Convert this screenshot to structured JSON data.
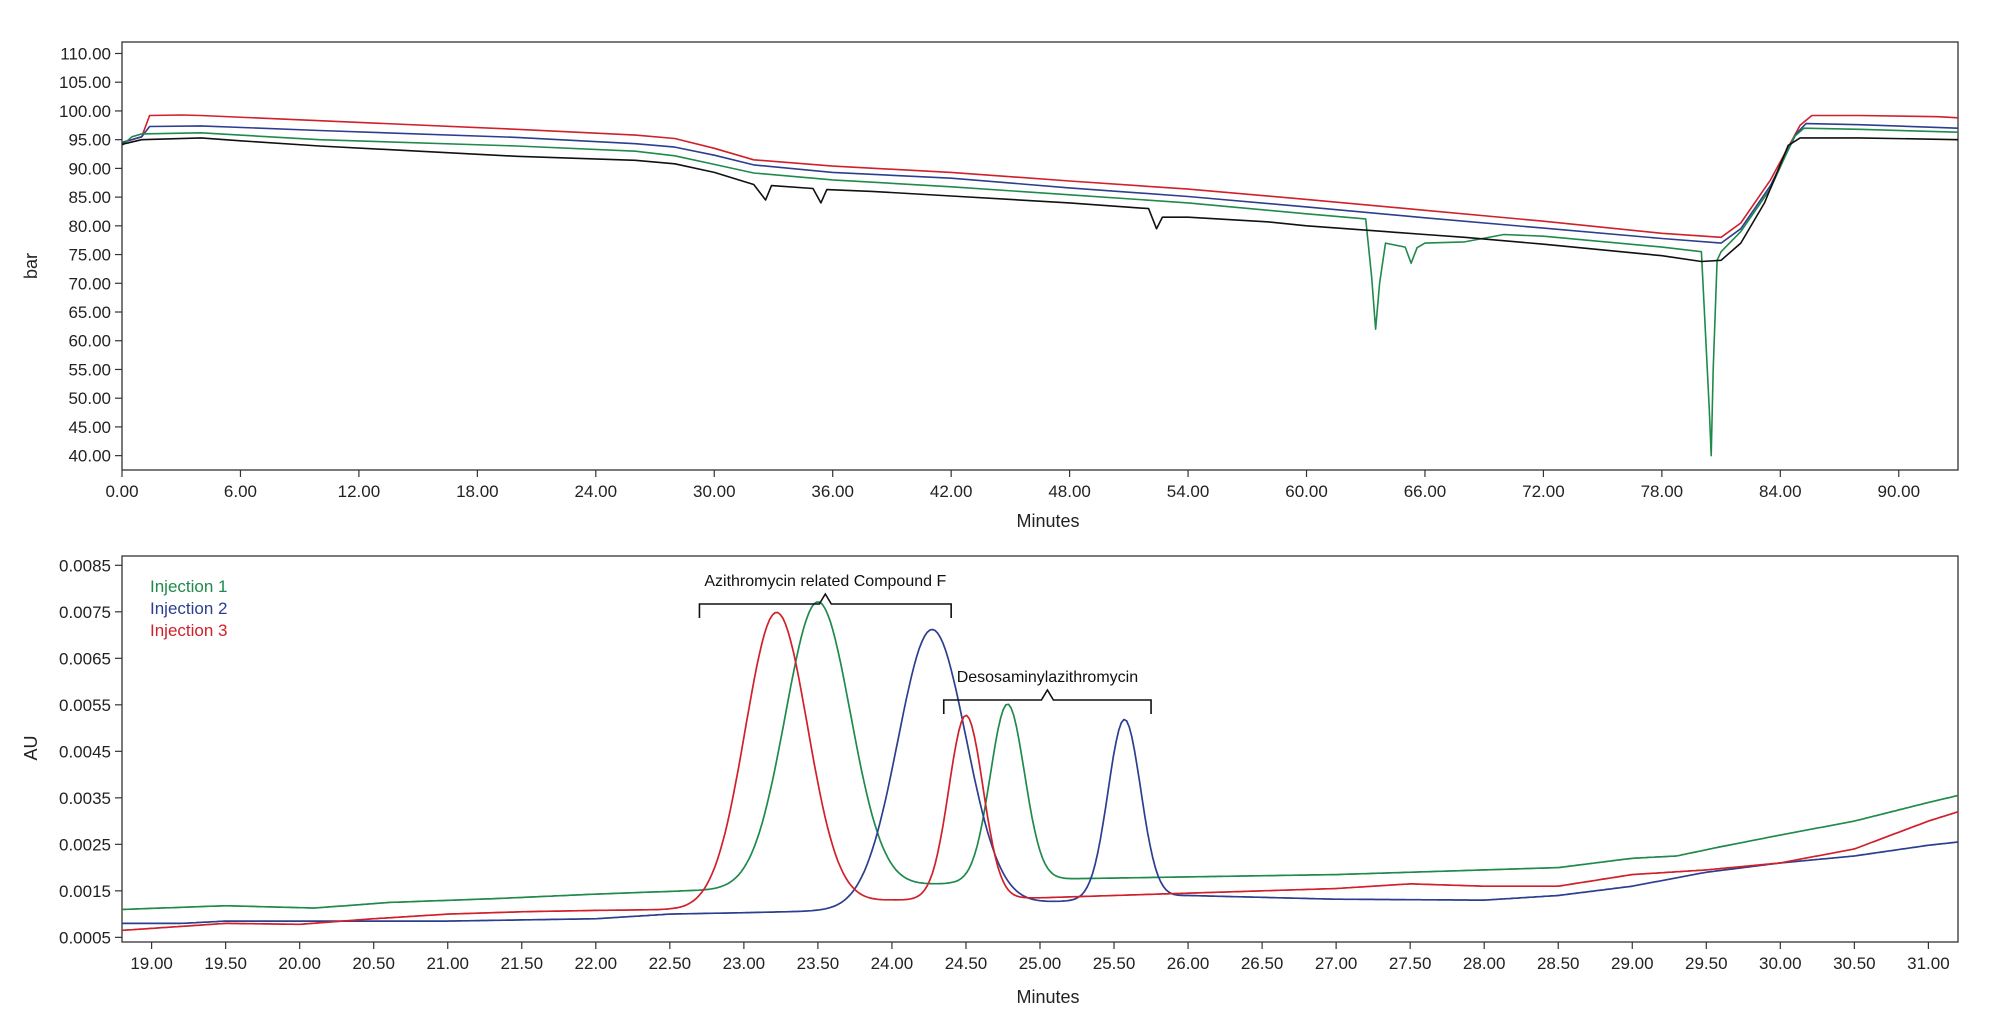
{
  "chart_data": [
    {
      "type": "line",
      "title": "",
      "xlabel": "Minutes",
      "ylabel": "bar",
      "xlim": [
        0,
        93
      ],
      "ylim": [
        37.5,
        112
      ],
      "grid": false,
      "xticks": [
        "0.00",
        "6.00",
        "12.00",
        "18.00",
        "24.00",
        "30.00",
        "36.00",
        "42.00",
        "48.00",
        "54.00",
        "60.00",
        "66.00",
        "72.00",
        "78.00",
        "84.00",
        "90.00"
      ],
      "yticks": [
        "40.00",
        "45.00",
        "50.00",
        "55.00",
        "60.00",
        "65.00",
        "70.00",
        "75.00",
        "80.00",
        "85.00",
        "90.00",
        "95.00",
        "100.00",
        "105.00",
        "110.00"
      ],
      "series": [
        {
          "color": "#d0202a",
          "points": [
            [
              0,
              94.5
            ],
            [
              1,
              95.5
            ],
            [
              1.4,
              99.2
            ],
            [
              3,
              99.3
            ],
            [
              4,
              99.2
            ],
            [
              10,
              98.3
            ],
            [
              20,
              96.8
            ],
            [
              26,
              95.8
            ],
            [
              28,
              95.2
            ],
            [
              30,
              93.5
            ],
            [
              32,
              91.5
            ],
            [
              36,
              90.4
            ],
            [
              42,
              89.3
            ],
            [
              48,
              87.8
            ],
            [
              54,
              86.4
            ],
            [
              60,
              84.6
            ],
            [
              66,
              82.7
            ],
            [
              72,
              80.8
            ],
            [
              78,
              78.7
            ],
            [
              81,
              78.0
            ],
            [
              82,
              80.5
            ],
            [
              83.5,
              88
            ],
            [
              85,
              97.5
            ],
            [
              85.6,
              99.2
            ],
            [
              88,
              99.2
            ],
            [
              92,
              99.0
            ],
            [
              93,
              98.8
            ]
          ]
        },
        {
          "color": "#2c3e8f",
          "points": [
            [
              0,
              94.5
            ],
            [
              1,
              95.5
            ],
            [
              1.4,
              97.3
            ],
            [
              4,
              97.4
            ],
            [
              10,
              96.6
            ],
            [
              20,
              95.4
            ],
            [
              26,
              94.3
            ],
            [
              28,
              93.7
            ],
            [
              30,
              92.3
            ],
            [
              32,
              90.6
            ],
            [
              36,
              89.3
            ],
            [
              42,
              88.3
            ],
            [
              48,
              86.6
            ],
            [
              54,
              85.1
            ],
            [
              60,
              83.3
            ],
            [
              66,
              81.4
            ],
            [
              72,
              79.6
            ],
            [
              78,
              77.8
            ],
            [
              81,
              77.0
            ],
            [
              82,
              79.5
            ],
            [
              83.5,
              87
            ],
            [
              84.8,
              96
            ],
            [
              85.3,
              97.8
            ],
            [
              88,
              97.6
            ],
            [
              93,
              97.0
            ]
          ]
        },
        {
          "color": "#1f8a4c",
          "points": [
            [
              0,
              94.0
            ],
            [
              0.5,
              95.5
            ],
            [
              1,
              96.0
            ],
            [
              4,
              96.2
            ],
            [
              10,
              95.0
            ],
            [
              20,
              93.9
            ],
            [
              26,
              93.0
            ],
            [
              28,
              92.2
            ],
            [
              30,
              90.7
            ],
            [
              32,
              89.2
            ],
            [
              36,
              88.0
            ],
            [
              42,
              86.8
            ],
            [
              48,
              85.4
            ],
            [
              54,
              84.0
            ],
            [
              60,
              82.1
            ],
            [
              63,
              81.2
            ],
            [
              63.3,
              71.0
            ],
            [
              63.5,
              62.0
            ],
            [
              63.7,
              70.0
            ],
            [
              64,
              77.0
            ],
            [
              65,
              76.3
            ],
            [
              65.3,
              73.5
            ],
            [
              65.6,
              76.2
            ],
            [
              66,
              77.0
            ],
            [
              68,
              77.2
            ],
            [
              70,
              78.5
            ],
            [
              72,
              78.2
            ],
            [
              78,
              76.3
            ],
            [
              80,
              75.5
            ],
            [
              80.4,
              48.0
            ],
            [
              80.5,
              40.0
            ],
            [
              80.6,
              55.0
            ],
            [
              80.8,
              74.0
            ],
            [
              81,
              75.5
            ],
            [
              82,
              79.0
            ],
            [
              83.5,
              86.5
            ],
            [
              84.7,
              95.5
            ],
            [
              85.2,
              97.0
            ],
            [
              88,
              96.8
            ],
            [
              93,
              96.3
            ]
          ]
        },
        {
          "color": "#111111",
          "points": [
            [
              0,
              94.2
            ],
            [
              1,
              95.0
            ],
            [
              4,
              95.3
            ],
            [
              6,
              94.8
            ],
            [
              10,
              93.9
            ],
            [
              20,
              92.1
            ],
            [
              26,
              91.4
            ],
            [
              28,
              90.8
            ],
            [
              30,
              89.3
            ],
            [
              32,
              87.2
            ],
            [
              32.6,
              84.5
            ],
            [
              32.9,
              87.0
            ],
            [
              35,
              86.5
            ],
            [
              35.4,
              84.0
            ],
            [
              35.7,
              86.3
            ],
            [
              38,
              86.0
            ],
            [
              42,
              85.2
            ],
            [
              48,
              84.0
            ],
            [
              52,
              83.0
            ],
            [
              52.4,
              79.5
            ],
            [
              52.7,
              81.5
            ],
            [
              54,
              81.5
            ],
            [
              58,
              80.7
            ],
            [
              60,
              80.0
            ],
            [
              64,
              79.0
            ],
            [
              66,
              78.5
            ],
            [
              68,
              78.0
            ],
            [
              72,
              76.8
            ],
            [
              78,
              74.8
            ],
            [
              80,
              73.8
            ],
            [
              81,
              74.0
            ],
            [
              82,
              77.0
            ],
            [
              83.2,
              84.0
            ],
            [
              84.4,
              94.0
            ],
            [
              85,
              95.3
            ],
            [
              88,
              95.3
            ],
            [
              93,
              95.0
            ]
          ]
        }
      ]
    },
    {
      "type": "line",
      "title": "",
      "xlabel": "Minutes",
      "ylabel": "AU",
      "xlim": [
        18.8,
        31.2
      ],
      "ylim": [
        0.0004,
        0.0087
      ],
      "grid": false,
      "legend_position": "top-left",
      "xticks": [
        "19.00",
        "19.50",
        "20.00",
        "20.50",
        "21.00",
        "21.50",
        "22.00",
        "22.50",
        "23.00",
        "23.50",
        "24.00",
        "24.50",
        "25.00",
        "25.50",
        "26.00",
        "26.50",
        "27.00",
        "27.50",
        "28.00",
        "28.50",
        "29.00",
        "29.50",
        "30.00",
        "30.50",
        "31.00"
      ],
      "yticks": [
        "0.0005",
        "0.0015",
        "0.0025",
        "0.0035",
        "0.0045",
        "0.0055",
        "0.0065",
        "0.0075",
        "0.0085"
      ],
      "annotations": [
        {
          "text": "Azithromycin related Compound F",
          "x1": 22.7,
          "x2": 24.4
        },
        {
          "text": "Desosaminylazithromycin",
          "x1": 24.35,
          "x2": 25.75
        }
      ],
      "series": [
        {
          "name": "Injection 1",
          "color": "#1f8a4c",
          "baseline": [
            [
              18.8,
              0.0011
            ],
            [
              19.5,
              0.00118
            ],
            [
              20.1,
              0.00113
            ],
            [
              20.6,
              0.00125
            ],
            [
              21.3,
              0.00133
            ],
            [
              22.0,
              0.00143
            ],
            [
              22.6,
              0.0015
            ],
            [
              24.0,
              0.0016
            ],
            [
              25.0,
              0.00175
            ],
            [
              26.0,
              0.0018
            ],
            [
              27.0,
              0.00185
            ],
            [
              28.0,
              0.00195
            ],
            [
              28.5,
              0.002
            ],
            [
              29.0,
              0.0022
            ],
            [
              29.3,
              0.00225
            ],
            [
              29.6,
              0.00245
            ],
            [
              30.0,
              0.0027
            ],
            [
              30.5,
              0.003
            ],
            [
              31.0,
              0.0034
            ],
            [
              31.2,
              0.00355
            ]
          ],
          "peaks": [
            [
              23.5,
              0.00615,
              0.22
            ],
            [
              24.78,
              0.0038,
              0.115
            ]
          ]
        },
        {
          "name": "Injection 2",
          "color": "#2c3e8f",
          "baseline": [
            [
              18.8,
              0.0008
            ],
            [
              19.2,
              0.0008
            ],
            [
              19.5,
              0.00085
            ],
            [
              20.0,
              0.00085
            ],
            [
              20.5,
              0.00085
            ],
            [
              21.0,
              0.00085
            ],
            [
              22.0,
              0.0009
            ],
            [
              22.5,
              0.001
            ],
            [
              23.0,
              0.00103
            ],
            [
              24.0,
              0.0011
            ],
            [
              25.0,
              0.00125
            ],
            [
              26.0,
              0.0014
            ],
            [
              27.0,
              0.00132
            ],
            [
              28.0,
              0.0013
            ],
            [
              28.5,
              0.0014
            ],
            [
              29.0,
              0.0016
            ],
            [
              29.5,
              0.0019
            ],
            [
              30.0,
              0.0021
            ],
            [
              30.5,
              0.00225
            ],
            [
              31.0,
              0.00248
            ],
            [
              31.2,
              0.00255
            ]
          ],
          "peaks": [
            [
              24.27,
              0.00598,
              0.23
            ],
            [
              25.57,
              0.00385,
              0.11
            ]
          ]
        },
        {
          "name": "Injection 3",
          "color": "#d0202a",
          "baseline": [
            [
              18.8,
              0.00065
            ],
            [
              19.5,
              0.0008
            ],
            [
              20.0,
              0.00078
            ],
            [
              20.5,
              0.0009
            ],
            [
              21.0,
              0.001
            ],
            [
              21.5,
              0.00105
            ],
            [
              22.0,
              0.00108
            ],
            [
              22.6,
              0.0011
            ],
            [
              24.0,
              0.0013
            ],
            [
              25.0,
              0.00135
            ],
            [
              25.5,
              0.0014
            ],
            [
              26.0,
              0.00145
            ],
            [
              27.0,
              0.00155
            ],
            [
              27.5,
              0.00165
            ],
            [
              28.0,
              0.0016
            ],
            [
              28.5,
              0.0016
            ],
            [
              29.0,
              0.00185
            ],
            [
              29.5,
              0.00195
            ],
            [
              30.0,
              0.0021
            ],
            [
              30.5,
              0.0024
            ],
            [
              31.0,
              0.003
            ],
            [
              31.2,
              0.0032
            ]
          ],
          "peaks": [
            [
              23.22,
              0.0063,
              0.21
            ],
            [
              24.5,
              0.00395,
              0.115
            ]
          ]
        }
      ]
    }
  ]
}
